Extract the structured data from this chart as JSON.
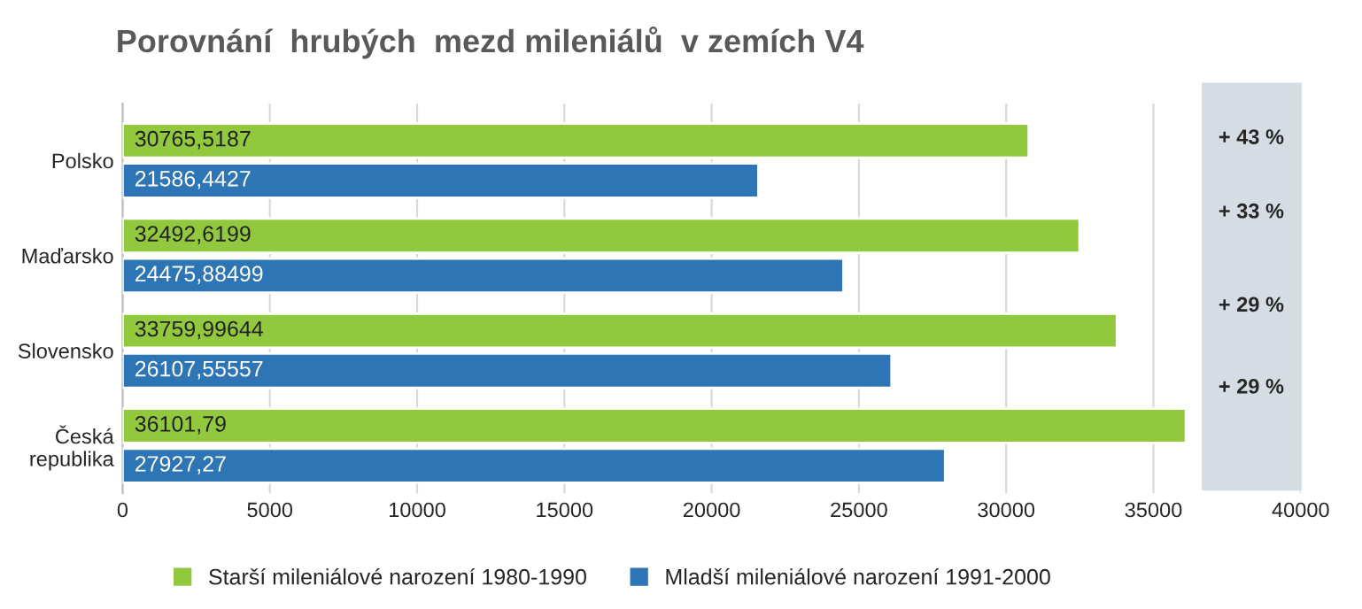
{
  "chart_data": {
    "type": "bar",
    "orientation": "horizontal",
    "title": "Porovnání  hrubých  mezd mileniálů  v zemích V4",
    "categories": [
      "Polsko",
      "Maďarsko",
      "Slovensko",
      "Česká republika"
    ],
    "series": [
      {
        "name": "Starší mileniálové narození 1980-1990",
        "color": "#92c83e",
        "values": [
          30765.5187,
          32492.6199,
          33759.99644,
          36101.79
        ],
        "value_labels": [
          "30765,5187",
          "32492,6199",
          "33759,99644",
          "36101,79"
        ]
      },
      {
        "name": "Mladší mileniálové narození 1991-2000",
        "color": "#2e75b6",
        "values": [
          21586.4427,
          24475.88499,
          26107.55557,
          27927.27
        ],
        "value_labels": [
          "21586,4427",
          "24475,88499",
          "26107,55557",
          "27927,27"
        ]
      }
    ],
    "xlim": [
      0,
      40000
    ],
    "xticks": [
      0,
      5000,
      10000,
      15000,
      20000,
      25000,
      30000,
      35000,
      40000
    ],
    "grid": "x",
    "legend": "bottom",
    "annotations": [
      "+ 43 %",
      "+ 33 %",
      "+ 29 %",
      "+ 29 %"
    ]
  }
}
